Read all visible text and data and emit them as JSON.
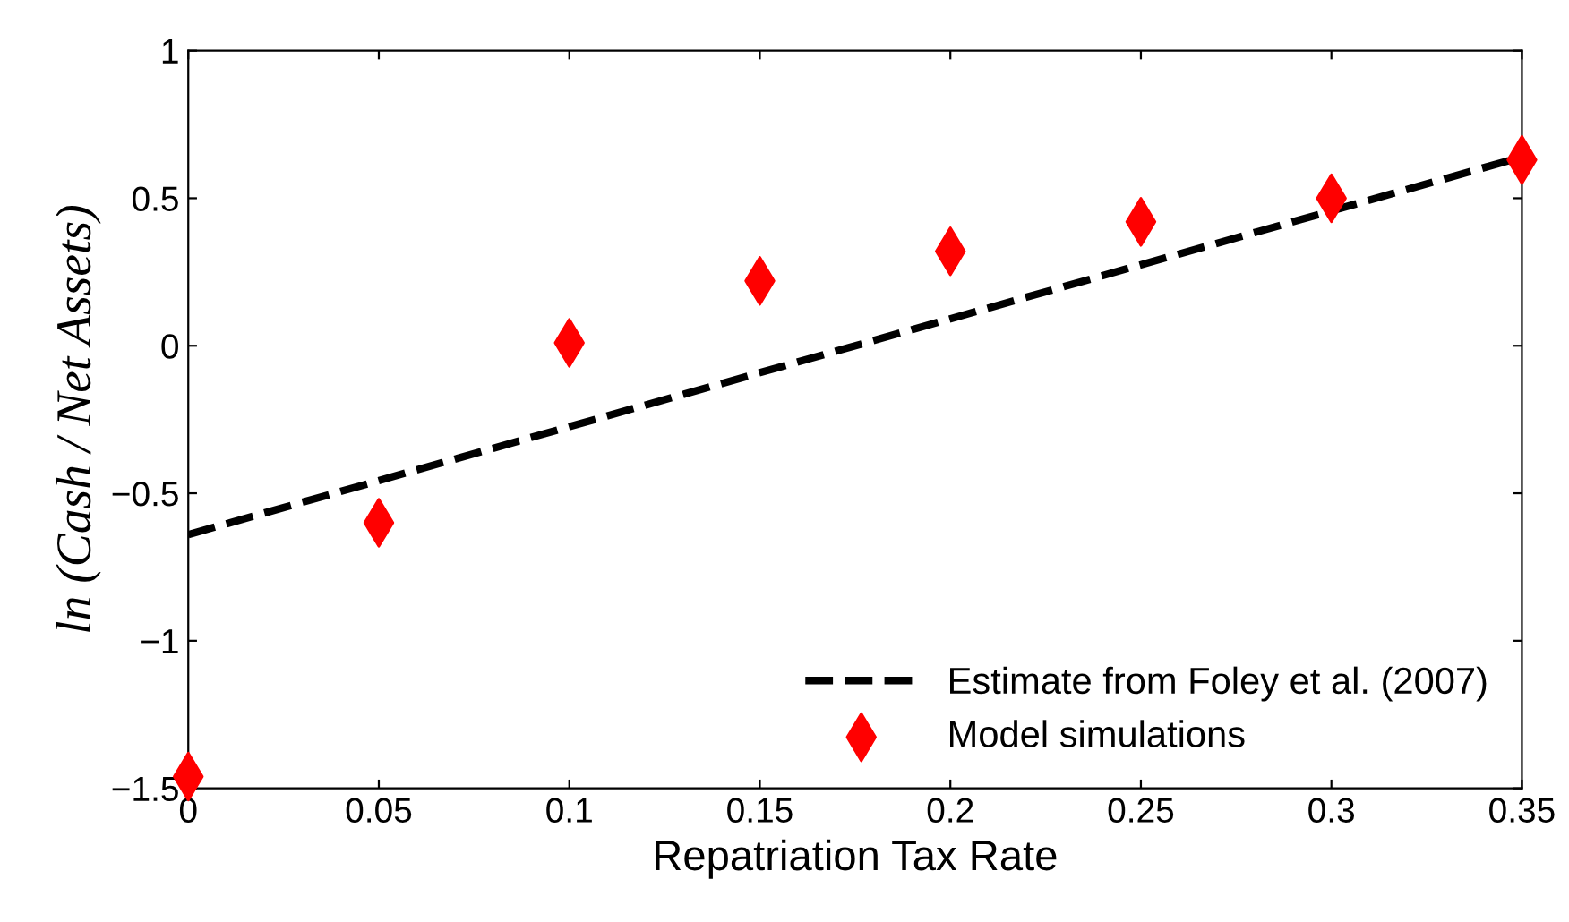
{
  "chart_data": {
    "type": "scatter",
    "xlabel": "Repatriation Tax Rate",
    "ylabel": "ln (Cash / Net Assets)",
    "xlim": [
      0,
      0.35
    ],
    "ylim": [
      -1.5,
      1
    ],
    "xticks": [
      0,
      0.05,
      0.1,
      0.15,
      0.2,
      0.25,
      0.3,
      0.35
    ],
    "yticks": [
      -1.5,
      -1,
      -0.5,
      0,
      0.5,
      1
    ],
    "grid": false,
    "legend": "bottom right",
    "series": [
      {
        "name": "Estimate from Foley et al. (2007)",
        "type": "line",
        "color": "#000000",
        "line_style": "dashed",
        "marker": "none",
        "x": [
          0,
          0.35
        ],
        "values": [
          -0.64,
          0.64
        ]
      },
      {
        "name": "Model simulations",
        "color": "#ff0000",
        "marker": "diamond",
        "x": [
          0,
          0.05,
          0.1,
          0.15,
          0.2,
          0.25,
          0.3,
          0.35
        ],
        "values": [
          -1.46,
          -0.6,
          0.01,
          0.22,
          0.32,
          0.42,
          0.5,
          0.63
        ]
      }
    ]
  }
}
